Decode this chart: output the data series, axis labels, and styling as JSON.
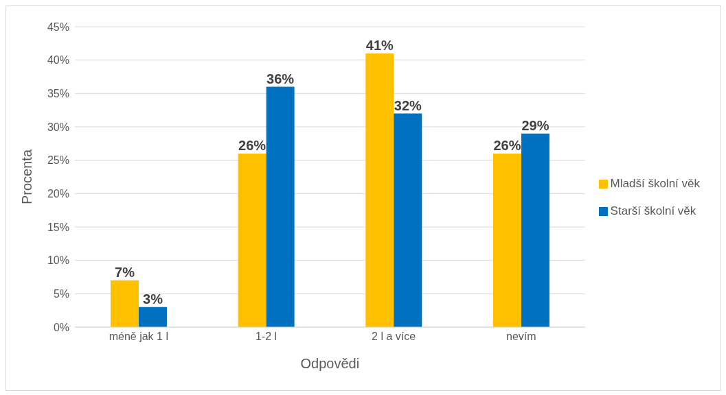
{
  "chart_data": {
    "type": "bar",
    "xlabel": "Odpovědi",
    "ylabel": "Procenta",
    "categories": [
      "méně jak 1 l",
      "1-2 l",
      "2 l a více",
      "nevím"
    ],
    "series": [
      {
        "name": "Mladší školní věk",
        "color": "#ffc000",
        "values": [
          7,
          26,
          41,
          26
        ],
        "value_labels": [
          "7%",
          "26%",
          "41%",
          "26%"
        ]
      },
      {
        "name": "Starší školní věk",
        "color": "#0070c0",
        "values": [
          3,
          36,
          32,
          29
        ],
        "value_labels": [
          "3%",
          "36%",
          "32%",
          "29%"
        ]
      }
    ],
    "ylim": [
      0,
      45
    ],
    "yticks": [
      {
        "value": 0,
        "label": "0%"
      },
      {
        "value": 5,
        "label": "5%"
      },
      {
        "value": 10,
        "label": "10%"
      },
      {
        "value": 15,
        "label": "15%"
      },
      {
        "value": 20,
        "label": "20%"
      },
      {
        "value": 25,
        "label": "25%"
      },
      {
        "value": 30,
        "label": "30%"
      },
      {
        "value": 35,
        "label": "35%"
      },
      {
        "value": 40,
        "label": "40%"
      },
      {
        "value": 45,
        "label": "45%"
      }
    ],
    "grid": "y",
    "legend": "right"
  }
}
